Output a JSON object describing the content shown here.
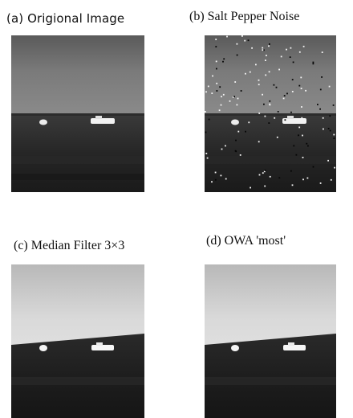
{
  "panels": {
    "a": {
      "caption": "(a) Origional Image"
    },
    "b": {
      "caption": "(b) Salt Pepper Noise"
    },
    "c": {
      "caption": "(c) Median Filter 3×3"
    },
    "d": {
      "caption": "(d) OWA 'most'"
    }
  }
}
